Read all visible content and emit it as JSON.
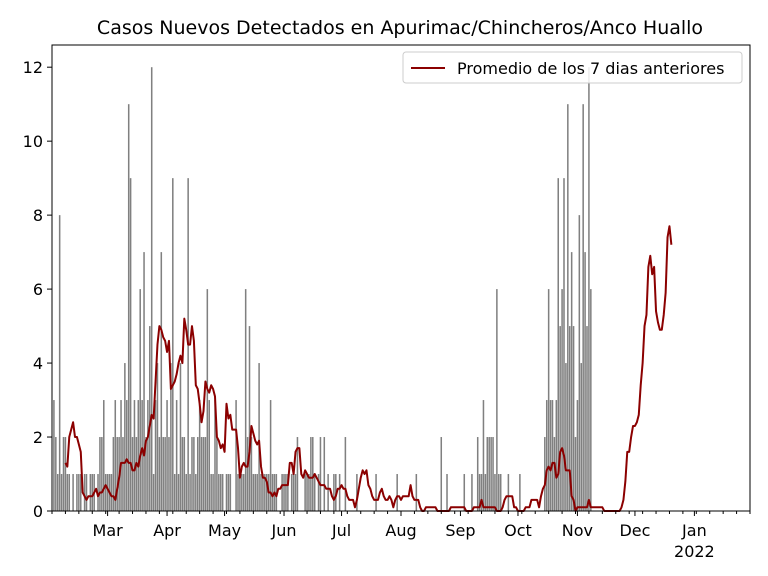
{
  "chart_data": {
    "type": "bar",
    "title": "Casos Nuevos Detectados en Apurimac/Chincheros/Anco Huallo",
    "xlabel": "",
    "ylabel": "",
    "ylim": [
      0,
      12.6
    ],
    "yticks": [
      "0",
      "2",
      "4",
      "6",
      "8",
      "10",
      "12"
    ],
    "x_range": [
      "2021-01-31",
      "2022-01-30"
    ],
    "month_ticks": [
      {
        "date": "2021-03-01",
        "label": "Mar"
      },
      {
        "date": "2021-04-01",
        "label": "Apr"
      },
      {
        "date": "2021-05-01",
        "label": "May"
      },
      {
        "date": "2021-06-01",
        "label": "Jun"
      },
      {
        "date": "2021-07-01",
        "label": "Jul"
      },
      {
        "date": "2021-08-01",
        "label": "Aug"
      },
      {
        "date": "2021-09-01",
        "label": "Sep"
      },
      {
        "date": "2021-10-01",
        "label": "Oct"
      },
      {
        "date": "2021-11-01",
        "label": "Nov"
      },
      {
        "date": "2021-12-01",
        "label": "Dec"
      },
      {
        "date": "2022-01-01",
        "label": "Jan"
      }
    ],
    "year_label": "2022",
    "grid": false,
    "legend_position": "top-right",
    "series": [
      {
        "name": "Casos nuevos",
        "kind": "bar",
        "color": "#808080",
        "start_date": "2021-02-01",
        "values": [
          3,
          2,
          1,
          8,
          1,
          2,
          2,
          1,
          1,
          0,
          1,
          0,
          1,
          1,
          1,
          0,
          1,
          1,
          0,
          1,
          1,
          1,
          0,
          1,
          2,
          2,
          3,
          1,
          1,
          1,
          1,
          2,
          3,
          2,
          2,
          3,
          2,
          4,
          3,
          11,
          9,
          2,
          3,
          2,
          3,
          6,
          3,
          7,
          2,
          3,
          5,
          12,
          1,
          3,
          4,
          2,
          7,
          2,
          2,
          3,
          2,
          4,
          9,
          1,
          3,
          1,
          4,
          2,
          2,
          1,
          9,
          1,
          2,
          2,
          1,
          2,
          3,
          2,
          2,
          2,
          6,
          3,
          1,
          1,
          3,
          2,
          1,
          1,
          1,
          0,
          1,
          1,
          1,
          0,
          0,
          3,
          1,
          1,
          1,
          1,
          6,
          2,
          5,
          2,
          1,
          1,
          1,
          4,
          1,
          1,
          1,
          1,
          1,
          3,
          1,
          1,
          1,
          0,
          0,
          1,
          1,
          1,
          1,
          0,
          1,
          1,
          1,
          2,
          0,
          0,
          0,
          1,
          1,
          1,
          2,
          2,
          1,
          0,
          1,
          2,
          0,
          2,
          0,
          1,
          0,
          0,
          1,
          1,
          0,
          1,
          0,
          0,
          2,
          0,
          0,
          0,
          0,
          0,
          1,
          0,
          0,
          0,
          0,
          0,
          0,
          0,
          0,
          0,
          1,
          0,
          0,
          0,
          0,
          0,
          0,
          0,
          0,
          0,
          0,
          1,
          0,
          0,
          0,
          0,
          0,
          0,
          0,
          0,
          0,
          1,
          0,
          0,
          0,
          0,
          0,
          0,
          0,
          0,
          0,
          0,
          0,
          0,
          2,
          0,
          0,
          1,
          0,
          0,
          0,
          0,
          0,
          0,
          0,
          0,
          1,
          0,
          0,
          0,
          1,
          0,
          0,
          2,
          1,
          1,
          3,
          1,
          2,
          2,
          2,
          2,
          1,
          6,
          1,
          1,
          0,
          0,
          0,
          1,
          0,
          0,
          0,
          0,
          0,
          1,
          0,
          0,
          0,
          0,
          0,
          0,
          0,
          0,
          0,
          0,
          0,
          0,
          2,
          3,
          6,
          3,
          3,
          2,
          3,
          9,
          5,
          6,
          9,
          4,
          11,
          5,
          7,
          5,
          2,
          3,
          8,
          4,
          11,
          7,
          5,
          12,
          6
        ]
      },
      {
        "name": "Promedio de los 7 dias anteriores",
        "kind": "line",
        "color": "#8b0000",
        "start_date": "2021-02-07",
        "values": [
          1.3,
          1.2,
          2.0,
          2.2,
          2.4,
          2.0,
          2.0,
          1.8,
          1.6,
          0.5,
          0.4,
          0.3,
          0.4,
          0.4,
          0.4,
          0.5,
          0.6,
          0.4,
          0.5,
          0.5,
          0.6,
          0.7,
          0.6,
          0.5,
          0.4,
          0.4,
          0.3,
          0.6,
          0.9,
          1.3,
          1.3,
          1.3,
          1.4,
          1.3,
          1.3,
          1.1,
          1.1,
          1.3,
          1.2,
          1.5,
          1.7,
          1.5,
          1.9,
          2.0,
          2.3,
          2.6,
          2.5,
          3.5,
          4.5,
          5.0,
          4.9,
          4.7,
          4.6,
          4.3,
          4.6,
          3.3,
          3.4,
          3.5,
          3.7,
          4.0,
          4.2,
          4.0,
          5.2,
          4.9,
          4.5,
          4.5,
          5.0,
          4.6,
          3.4,
          3.3,
          2.9,
          2.4,
          2.7,
          3.5,
          3.3,
          3.2,
          3.4,
          3.3,
          3.1,
          2.0,
          1.9,
          1.7,
          1.8,
          1.6,
          2.9,
          2.5,
          2.6,
          2.2,
          2.2,
          2.2,
          1.7,
          0.9,
          1.2,
          1.3,
          1.2,
          1.2,
          1.6,
          2.3,
          2.1,
          1.9,
          1.8,
          1.9,
          1.2,
          0.9,
          0.9,
          0.8,
          0.5,
          0.5,
          0.4,
          0.5,
          0.4,
          0.6,
          0.6,
          0.7,
          0.7,
          0.7,
          0.7,
          1.3,
          1.3,
          1.0,
          1.6,
          1.7,
          1.7,
          1.0,
          0.9,
          1.1,
          1.0,
          0.9,
          0.9,
          0.9,
          1.0,
          0.9,
          0.8,
          0.7,
          0.7,
          0.7,
          0.6,
          0.6,
          0.6,
          0.4,
          0.3,
          0.4,
          0.6,
          0.6,
          0.7,
          0.6,
          0.6,
          0.4,
          0.3,
          0.3,
          0.3,
          0.1,
          0.3,
          0.6,
          0.9,
          1.1,
          1.0,
          1.1,
          0.7,
          0.6,
          0.4,
          0.3,
          0.3,
          0.3,
          0.5,
          0.6,
          0.4,
          0.3,
          0.3,
          0.4,
          0.3,
          0.1,
          0.3,
          0.4,
          0.4,
          0.3,
          0.4,
          0.4,
          0.4,
          0.4,
          0.7,
          0.4,
          0.3,
          0.3,
          0.3,
          0.1,
          0.0,
          0.0,
          0.1,
          0.1,
          0.1,
          0.1,
          0.1,
          0.1,
          0.0,
          0.0,
          0.0,
          0.0,
          0.0,
          0.0,
          0.0,
          0.1,
          0.1,
          0.1,
          0.1,
          0.1,
          0.1,
          0.1,
          0.1,
          0.0,
          0.0,
          0.0,
          0.0,
          0.1,
          0.1,
          0.1,
          0.1,
          0.3,
          0.1,
          0.1,
          0.1,
          0.1,
          0.1,
          0.1,
          0.1,
          0.0,
          0.0,
          0.0,
          0.1,
          0.3,
          0.4,
          0.4,
          0.4,
          0.4,
          0.1,
          0.1,
          0.0,
          0.0,
          0.0,
          0.0,
          0.1,
          0.1,
          0.1,
          0.3,
          0.3,
          0.3,
          0.3,
          0.1,
          0.4,
          0.6,
          0.7,
          1.1,
          1.2,
          1.1,
          1.3,
          1.3,
          0.9,
          1.0,
          1.6,
          1.7,
          1.5,
          1.1,
          1.1,
          1.1,
          0.4,
          0.3,
          0.0,
          0.1,
          0.1,
          0.1,
          0.1,
          0.1,
          0.1,
          0.3,
          0.1,
          0.1,
          0.1,
          0.1,
          0.1,
          0.1,
          0.1,
          0.0,
          0.0,
          0.0,
          0.0,
          0.0,
          0.0,
          0.0,
          0.0,
          0.0,
          0.1,
          0.3,
          0.8,
          1.6,
          1.6,
          2.0,
          2.3,
          2.3,
          2.4,
          2.6,
          3.4,
          4.0,
          5.0,
          5.3,
          6.6,
          6.9,
          6.4,
          6.6,
          5.4,
          5.1,
          4.9,
          4.9,
          5.3,
          5.9,
          7.4,
          7.7,
          7.2
        ]
      }
    ]
  }
}
